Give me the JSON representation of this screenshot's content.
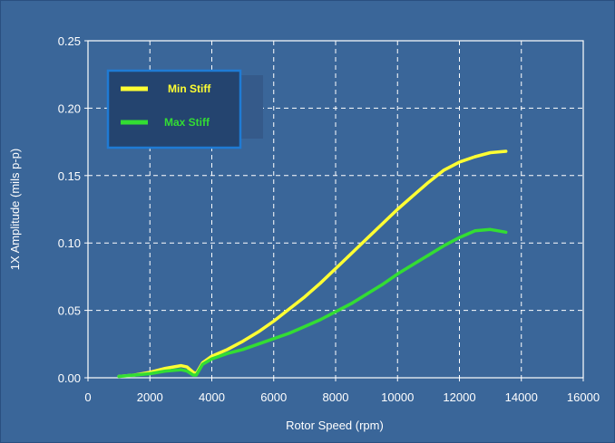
{
  "chart_data": {
    "type": "line",
    "title": "",
    "xlabel": "Rotor Speed (rpm)",
    "ylabel": "1X Amplitude (mils p-p)",
    "xlim": [
      0,
      16000
    ],
    "ylim": [
      0,
      0.25
    ],
    "xticks": [
      "0",
      "2000",
      "4000",
      "6000",
      "8000",
      "10000",
      "12000",
      "14000",
      "16000"
    ],
    "yticks": [
      "0.00",
      "0.05",
      "0.10",
      "0.15",
      "0.20",
      "0.25"
    ],
    "grid": true,
    "legend_position": "top-left",
    "series": [
      {
        "name": "Min Stiff",
        "color": "#ffff33",
        "x": [
          1000,
          1500,
          2000,
          2500,
          3000,
          3200,
          3400,
          3500,
          3700,
          4000,
          4500,
          5000,
          5500,
          6000,
          6500,
          7000,
          7500,
          8000,
          8500,
          9000,
          9500,
          10000,
          10500,
          11000,
          11500,
          12000,
          12500,
          13000,
          13500
        ],
        "y": [
          0.001,
          0.002,
          0.004,
          0.007,
          0.009,
          0.008,
          0.004,
          0.003,
          0.011,
          0.016,
          0.021,
          0.027,
          0.034,
          0.042,
          0.051,
          0.06,
          0.07,
          0.081,
          0.092,
          0.103,
          0.114,
          0.125,
          0.135,
          0.145,
          0.154,
          0.16,
          0.164,
          0.167,
          0.168
        ]
      },
      {
        "name": "Max Stiff",
        "color": "#33dd33",
        "x": [
          1000,
          1500,
          2000,
          2500,
          3000,
          3200,
          3400,
          3500,
          3700,
          4000,
          4500,
          5000,
          5500,
          6000,
          6500,
          7000,
          7500,
          8000,
          8500,
          9000,
          9500,
          10000,
          10500,
          11000,
          11500,
          12000,
          12500,
          13000,
          13500
        ],
        "y": [
          0.001,
          0.002,
          0.003,
          0.005,
          0.006,
          0.005,
          0.002,
          0.002,
          0.01,
          0.014,
          0.018,
          0.021,
          0.025,
          0.029,
          0.033,
          0.038,
          0.043,
          0.049,
          0.055,
          0.062,
          0.069,
          0.077,
          0.084,
          0.091,
          0.098,
          0.104,
          0.109,
          0.11,
          0.108
        ]
      }
    ]
  }
}
